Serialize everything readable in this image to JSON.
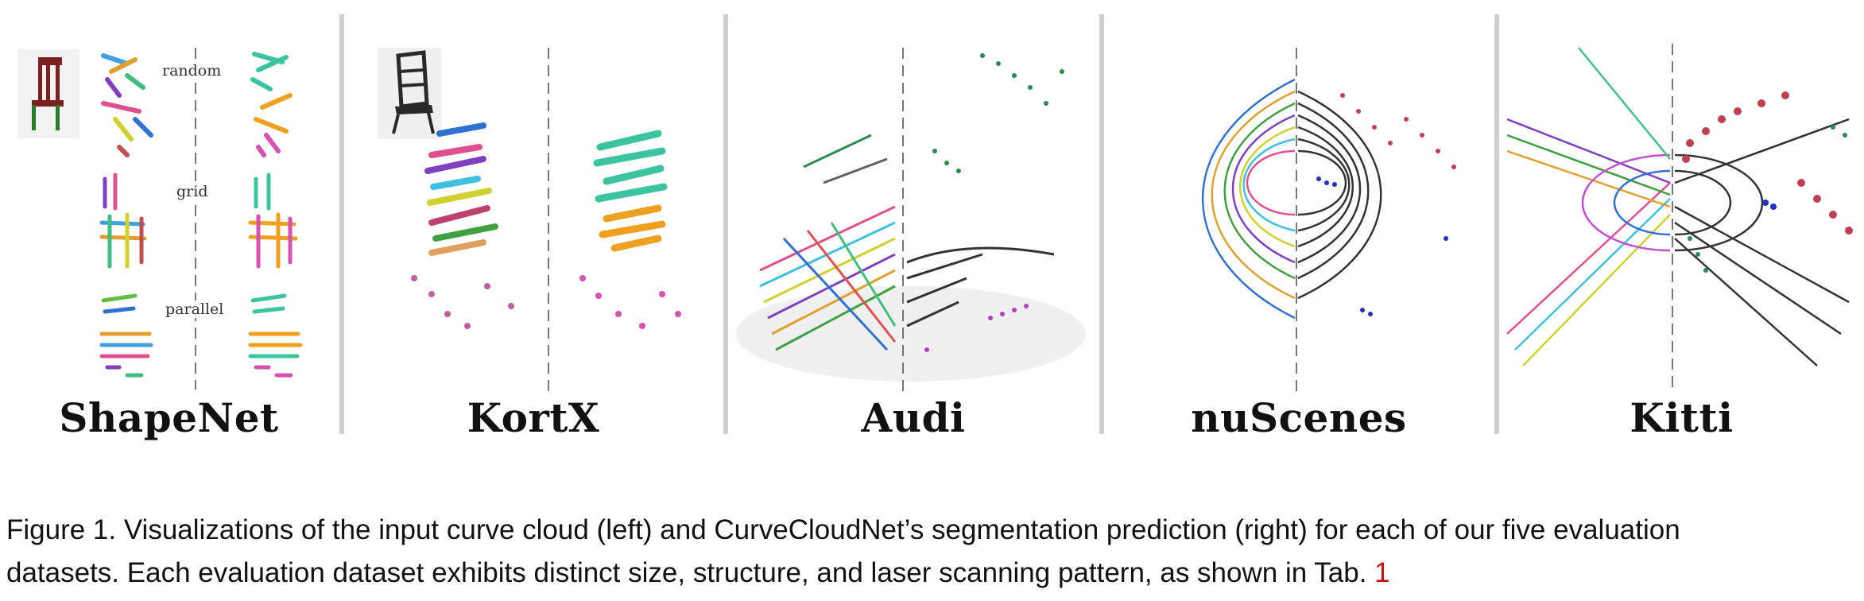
{
  "panels": [
    {
      "id": "shapenet",
      "label": "ShapeNet",
      "sublabels": [
        "random",
        "grid",
        "parallel"
      ]
    },
    {
      "id": "kortx",
      "label": "KortX"
    },
    {
      "id": "audi",
      "label": "Audi"
    },
    {
      "id": "nuscenes",
      "label": "nuScenes"
    },
    {
      "id": "kitti",
      "label": "Kitti"
    }
  ],
  "caption": {
    "line1": "Figure 1. Visualizations of the input curve cloud (left) and CurveCloudNet’s segmentation prediction (right) for each of our five evaluation",
    "line2_text": "datasets. Each evaluation dataset exhibits distinct size, structure, and laser scanning pattern, as shown in Tab. ",
    "line2_ref": "1"
  },
  "colors": {
    "ref": "#d01010",
    "segment_teal": "#3cc4a0",
    "segment_orange": "#f0a020",
    "segment_pink": "#d850b0",
    "segment_dark": "#333333",
    "segment_red": "#c04050",
    "segment_green": "#2a8a50",
    "segment_blue": "#2030c0"
  }
}
